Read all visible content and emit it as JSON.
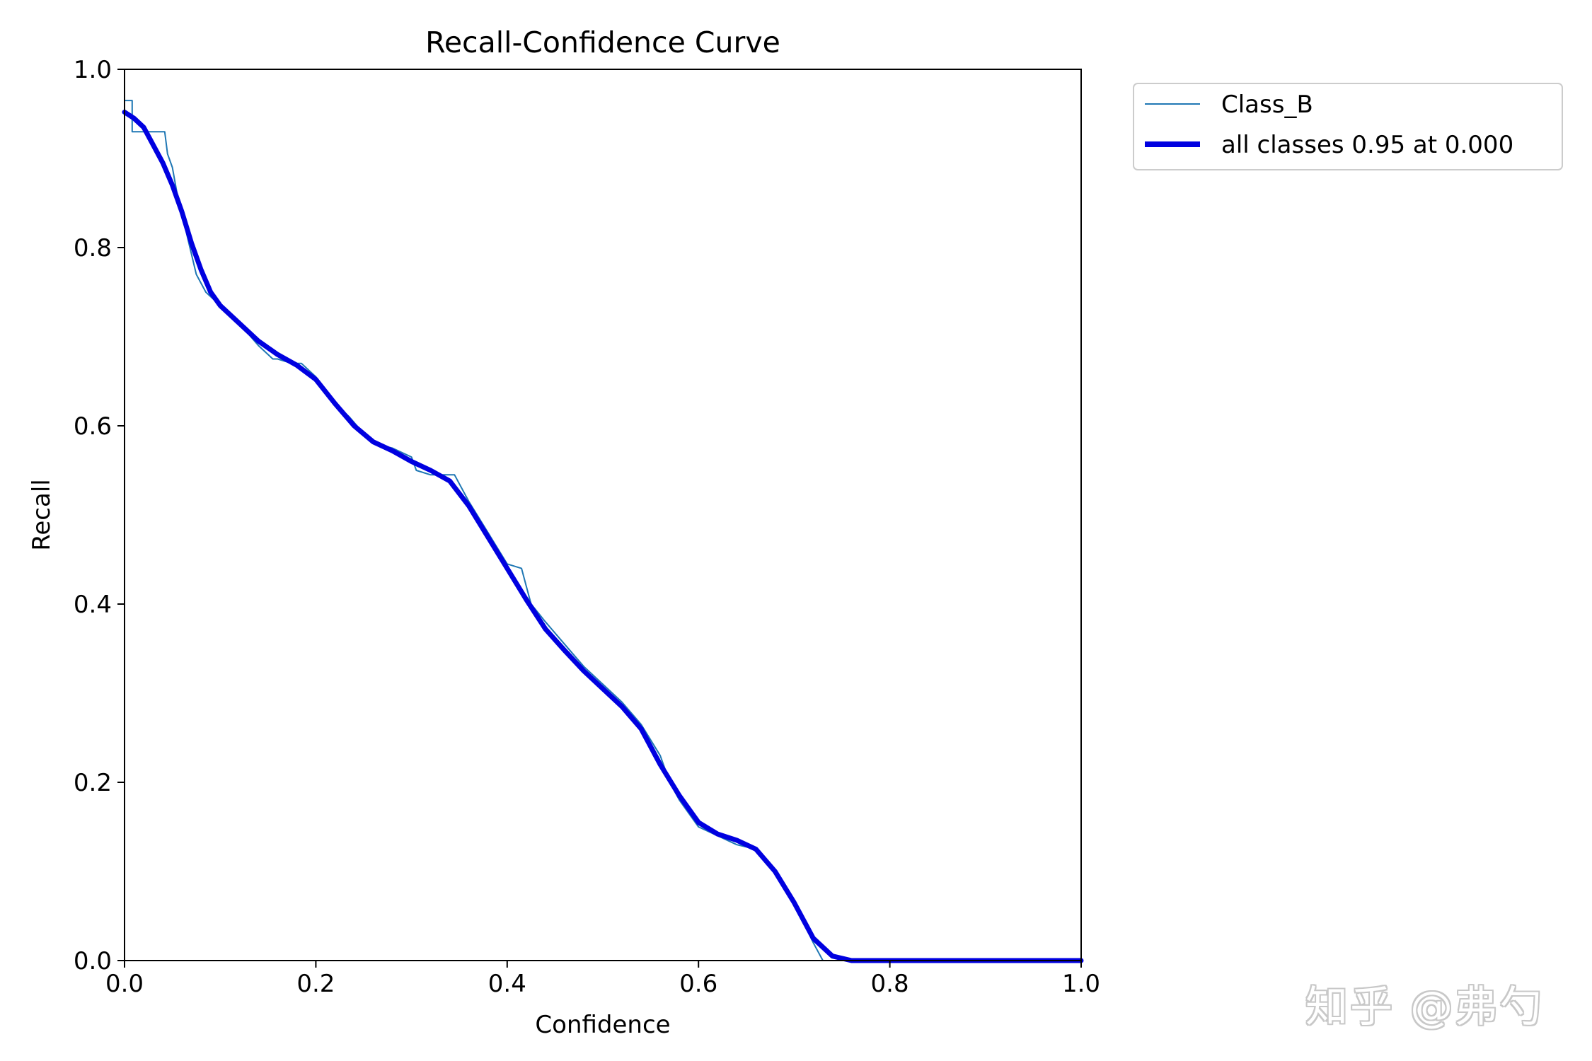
{
  "chart_data": {
    "type": "line",
    "title": "Recall-Confidence Curve",
    "xlabel": "Confidence",
    "ylabel": "Recall",
    "xlim": [
      0.0,
      1.0
    ],
    "ylim": [
      0.0,
      1.0
    ],
    "x_ticks": [
      "0.0",
      "0.2",
      "0.4",
      "0.6",
      "0.8",
      "1.0"
    ],
    "y_ticks": [
      "0.0",
      "0.2",
      "0.4",
      "0.6",
      "0.8",
      "1.0"
    ],
    "grid": false,
    "legend_placement": "outside-upper-right",
    "series": [
      {
        "name": "Class_B",
        "color": "#1f77b4",
        "x": [
          0.0,
          0.008,
          0.008,
          0.042,
          0.045,
          0.05,
          0.055,
          0.06,
          0.065,
          0.075,
          0.085,
          0.1,
          0.12,
          0.14,
          0.155,
          0.16,
          0.175,
          0.185,
          0.2,
          0.22,
          0.235,
          0.255,
          0.26,
          0.28,
          0.3,
          0.305,
          0.32,
          0.345,
          0.36,
          0.38,
          0.4,
          0.415,
          0.42,
          0.425,
          0.44,
          0.46,
          0.48,
          0.5,
          0.52,
          0.54,
          0.56,
          0.57,
          0.58,
          0.6,
          0.62,
          0.64,
          0.66,
          0.68,
          0.7,
          0.72,
          0.73,
          0.75,
          0.8,
          0.9,
          1.0
        ],
        "y": [
          0.965,
          0.965,
          0.93,
          0.93,
          0.905,
          0.89,
          0.86,
          0.84,
          0.815,
          0.77,
          0.75,
          0.735,
          0.715,
          0.69,
          0.675,
          0.675,
          0.67,
          0.67,
          0.655,
          0.625,
          0.61,
          0.585,
          0.58,
          0.575,
          0.565,
          0.55,
          0.545,
          0.545,
          0.515,
          0.48,
          0.445,
          0.44,
          0.42,
          0.4,
          0.38,
          0.355,
          0.33,
          0.31,
          0.29,
          0.265,
          0.23,
          0.2,
          0.18,
          0.15,
          0.14,
          0.13,
          0.125,
          0.1,
          0.065,
          0.02,
          0.0,
          0.0,
          0.0,
          0.0,
          0.0
        ]
      },
      {
        "name": "all classes 0.95 at 0.000",
        "color": "#0000e0",
        "x": [
          0.0,
          0.01,
          0.02,
          0.03,
          0.04,
          0.05,
          0.06,
          0.07,
          0.08,
          0.09,
          0.1,
          0.12,
          0.14,
          0.16,
          0.18,
          0.2,
          0.22,
          0.24,
          0.26,
          0.28,
          0.3,
          0.32,
          0.34,
          0.36,
          0.38,
          0.4,
          0.42,
          0.44,
          0.46,
          0.48,
          0.5,
          0.52,
          0.54,
          0.56,
          0.58,
          0.6,
          0.62,
          0.64,
          0.66,
          0.68,
          0.7,
          0.72,
          0.74,
          0.76,
          0.8,
          0.9,
          1.0
        ],
        "y": [
          0.952,
          0.945,
          0.935,
          0.915,
          0.895,
          0.87,
          0.84,
          0.805,
          0.775,
          0.75,
          0.735,
          0.715,
          0.695,
          0.68,
          0.668,
          0.652,
          0.625,
          0.6,
          0.582,
          0.572,
          0.56,
          0.55,
          0.538,
          0.51,
          0.475,
          0.44,
          0.405,
          0.372,
          0.348,
          0.325,
          0.305,
          0.285,
          0.26,
          0.22,
          0.185,
          0.155,
          0.142,
          0.135,
          0.125,
          0.1,
          0.065,
          0.025,
          0.005,
          0.0,
          0.0,
          0.0,
          0.0
        ]
      }
    ]
  },
  "watermark": "知乎 @弗勺"
}
